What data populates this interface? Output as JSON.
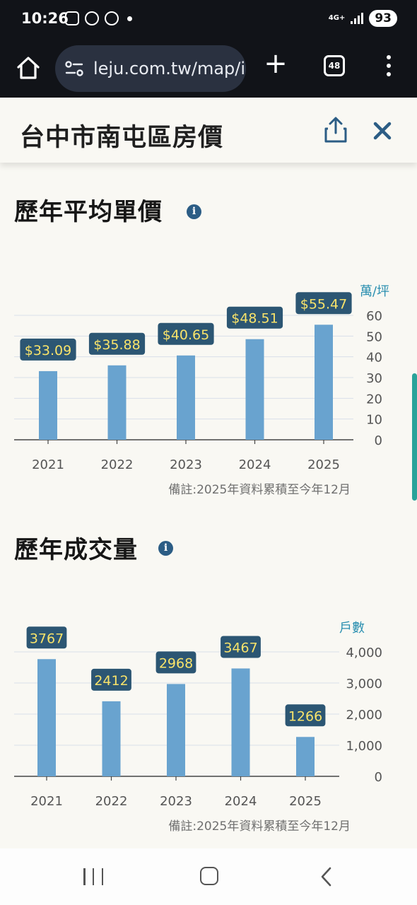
{
  "status": {
    "time": "10:26",
    "network": "4G+",
    "battery": "93"
  },
  "browser": {
    "url": "leju.com.tw/map/i",
    "tab_count": "48"
  },
  "page": {
    "title": "台中市南屯區房價"
  },
  "sections": {
    "price_title": "歷年平均單價",
    "volume_title": "歷年成交量",
    "note": "備註:2025年資料累積至今年12月"
  },
  "colors": {
    "bar": "#69a3cf",
    "label_bg": "#2c5673",
    "label_text": "#f8e36a",
    "unit": "#2a8fb0"
  },
  "chart_data": [
    {
      "type": "bar",
      "unit_label": "萬/坪",
      "categories": [
        "2021",
        "2022",
        "2023",
        "2024",
        "2025"
      ],
      "values": [
        33.09,
        35.88,
        40.65,
        48.51,
        55.47
      ],
      "data_labels": [
        "$33.09",
        "$35.88",
        "$40.65",
        "$48.51",
        "$55.47"
      ],
      "yticks": [
        "0",
        "10",
        "20",
        "30",
        "40",
        "50",
        "60"
      ],
      "ylim": [
        0,
        60
      ],
      "axis_side": "right",
      "grid": true
    },
    {
      "type": "bar",
      "unit_label": "戶數",
      "categories": [
        "2021",
        "2022",
        "2023",
        "2024",
        "2025"
      ],
      "values": [
        3767,
        2412,
        2968,
        3467,
        1266
      ],
      "data_labels": [
        "3767",
        "2412",
        "2968",
        "3467",
        "1266"
      ],
      "yticks": [
        "0",
        "1,000",
        "2,000",
        "3,000",
        "4,000"
      ],
      "ylim": [
        0,
        4000
      ],
      "axis_side": "right",
      "grid": true
    }
  ]
}
